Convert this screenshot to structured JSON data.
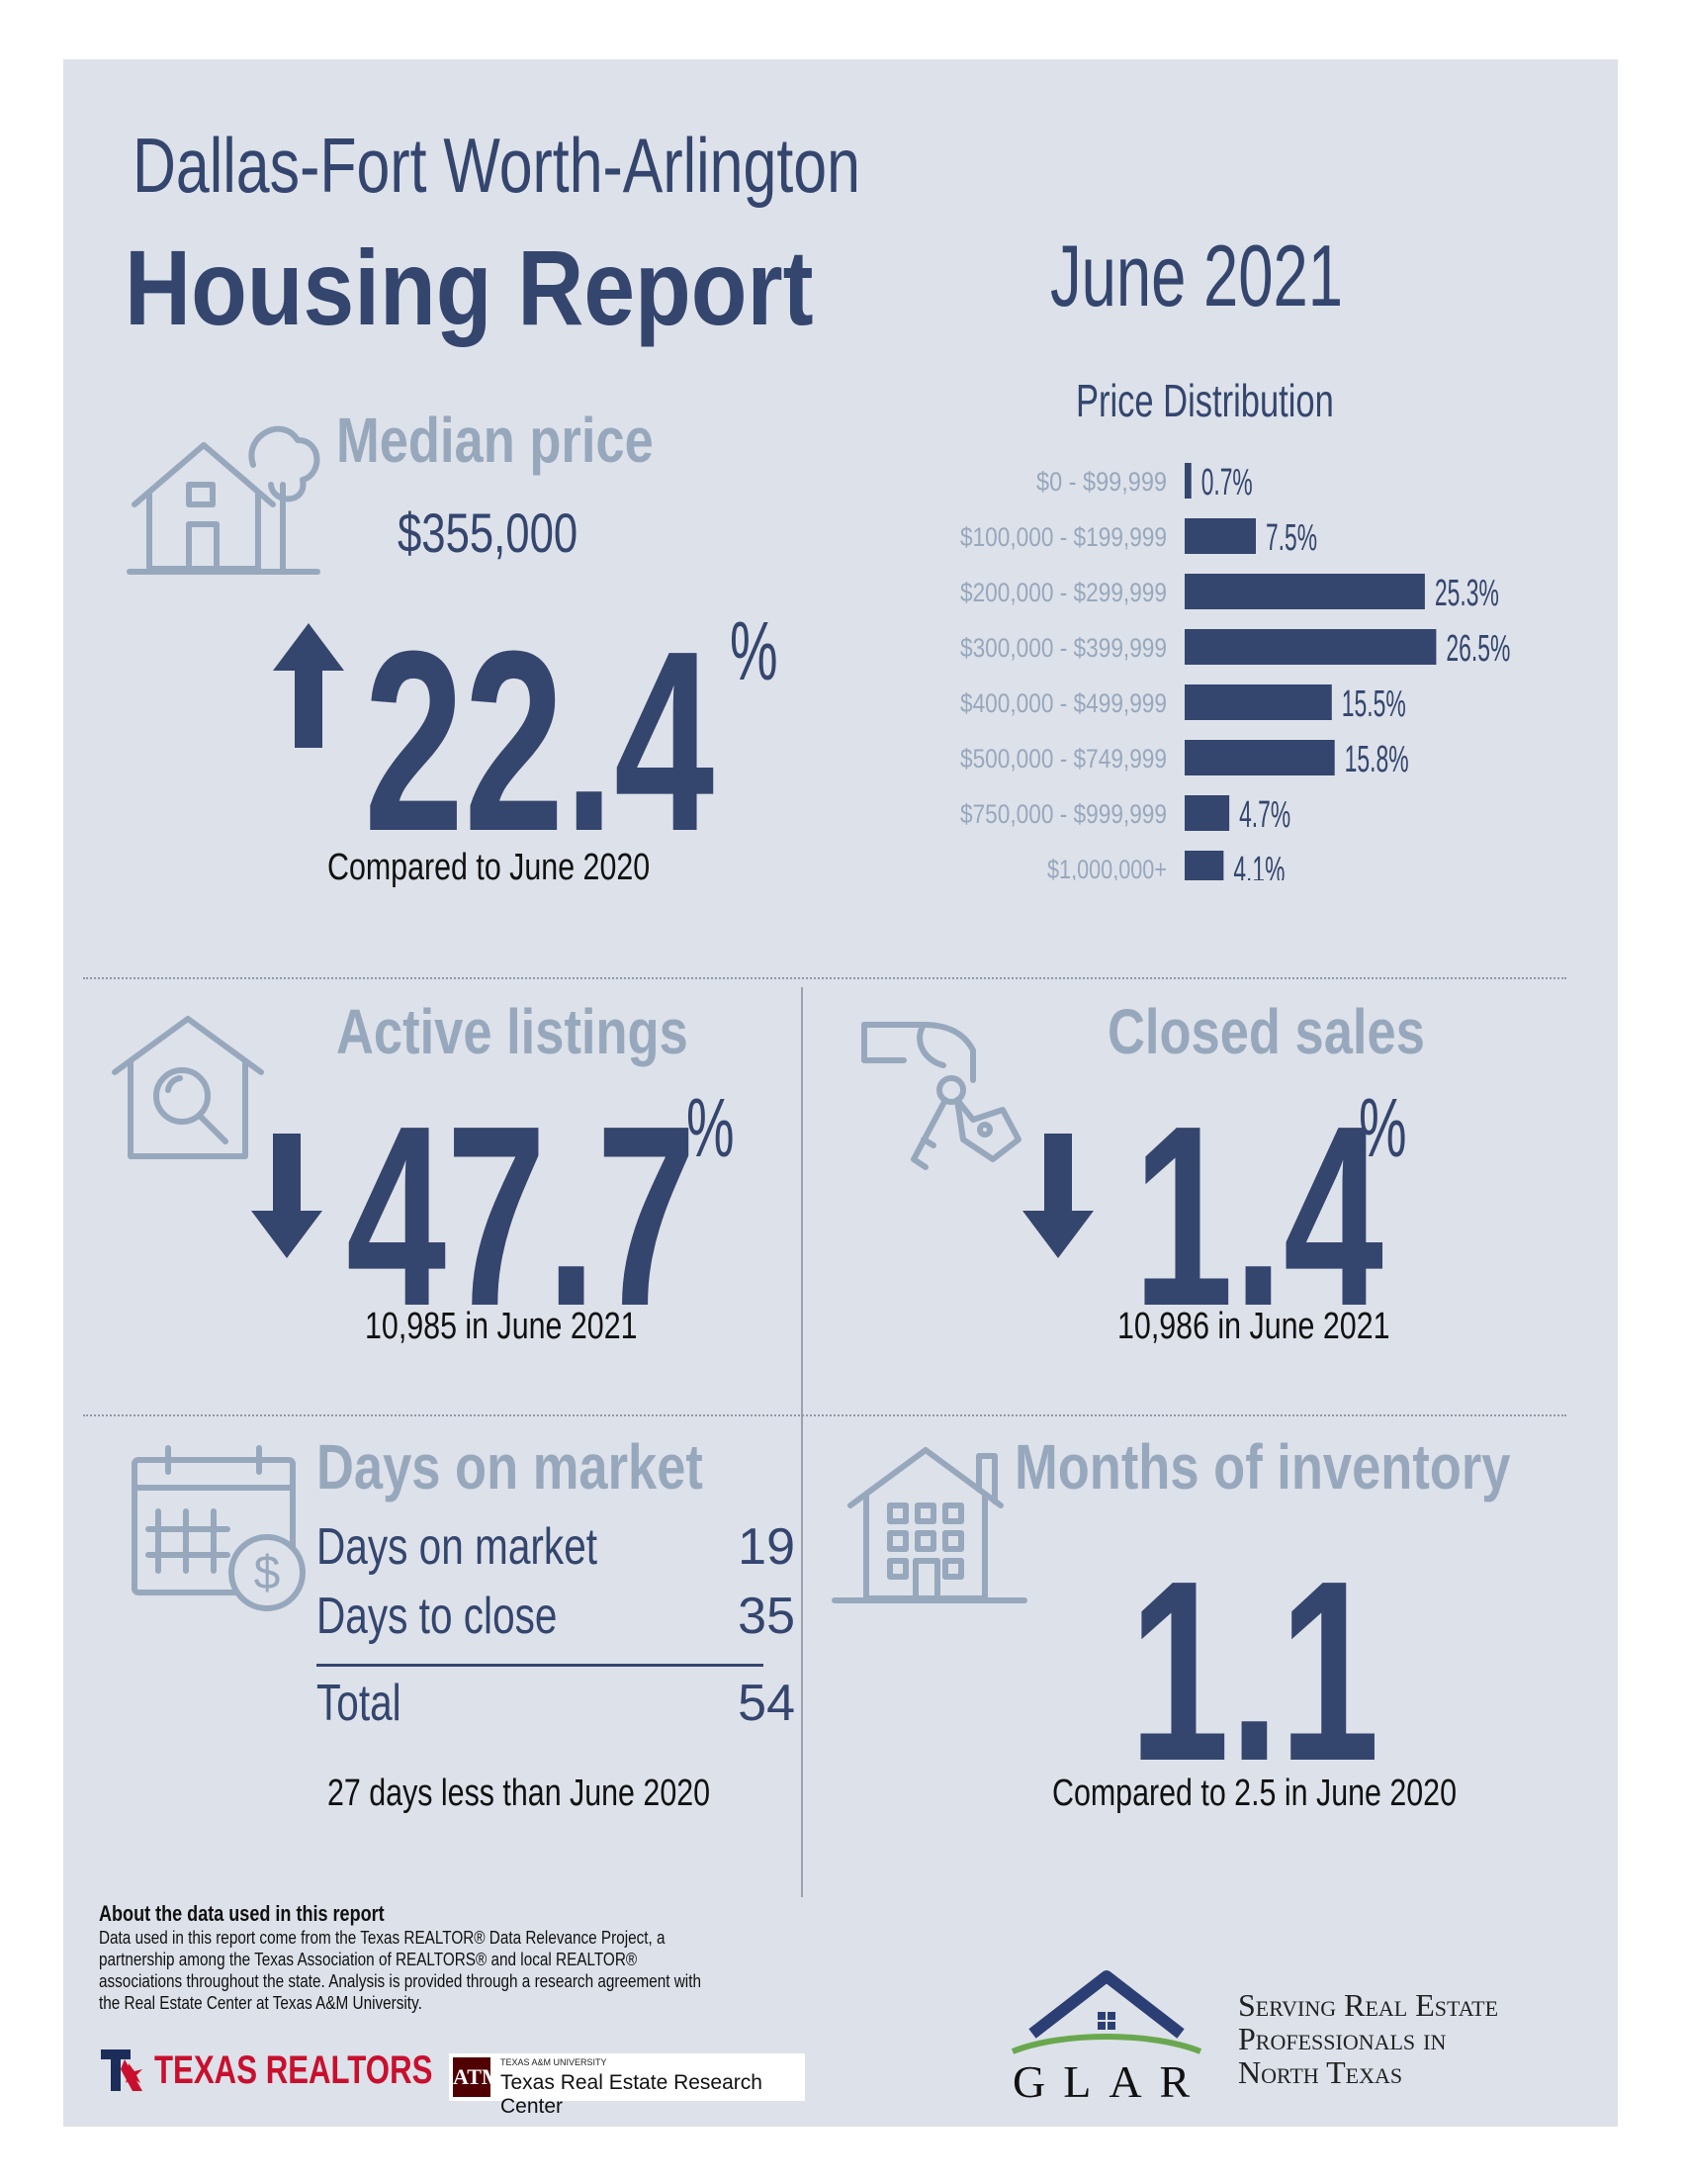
{
  "header": {
    "title_line1": "Dallas-Fort Worth-Arlington",
    "title_line2": "Housing Report",
    "date": "June 2021"
  },
  "median_price": {
    "title": "Median price",
    "value": "$355,000",
    "change": "22.4",
    "unit": "%",
    "direction": "up",
    "note": "Compared to June 2020"
  },
  "price_distribution": {
    "title": "Price Distribution",
    "bar_color": "#34466e"
  },
  "chart_data": {
    "type": "bar",
    "orientation": "horizontal",
    "title": "Price Distribution",
    "categories": [
      "$0 - $99,999",
      "$100,000 - $199,999",
      "$200,000 - $299,999",
      "$300,000 - $399,999",
      "$400,000 - $499,999",
      "$500,000 - $749,999",
      "$750,000 - $999,999",
      "$1,000,000+"
    ],
    "values": [
      0.7,
      7.5,
      25.3,
      26.5,
      15.5,
      15.8,
      4.7,
      4.1
    ],
    "labels": [
      "0.7%",
      "7.5%",
      "25.3%",
      "26.5%",
      "15.5%",
      "15.8%",
      "4.7%",
      "4.1%"
    ]
  },
  "active_listings": {
    "title": "Active listings",
    "change": "47.7",
    "unit": "%",
    "direction": "down",
    "note": "10,985 in June 2021"
  },
  "closed_sales": {
    "title": "Closed sales",
    "change": "1.4",
    "unit": "%",
    "direction": "down",
    "note": "10,986 in June 2021"
  },
  "days_on_market": {
    "title": "Days on market",
    "rows": [
      {
        "label": "Days on market",
        "value": "19"
      },
      {
        "label": "Days to close",
        "value": "35"
      }
    ],
    "total_label": "Total",
    "total_value": "54",
    "note": "27 days less than June 2020"
  },
  "months_inventory": {
    "title": "Months of inventory",
    "value": "1.1",
    "note": "Compared to 2.5 in June 2020"
  },
  "footer": {
    "about_title": "About the data used in this report",
    "about_text": "Data used in this report come from the Texas REALTOR® Data Relevance Project, a partnership among the Texas Association of REALTORS® and local REALTOR® associations throughout the state. Analysis is provided through a research agreement with the Real Estate Center at Texas A&M University.",
    "texas_realtors_logo": "TEXAS REALTORS",
    "tamu_small": "TEXAS A&M UNIVERSITY",
    "tamu_name": "Texas Real Estate Research Center",
    "glar_logo": "GLAR",
    "tagline_1": "Serving Real Estate",
    "tagline_2": "Professionals in",
    "tagline_3": "North Texas"
  },
  "colors": {
    "navy": "#34466e",
    "pale_blue": "#97a8bd",
    "panel_bg": "#dde1e9",
    "tx_red": "#c8102e",
    "tamu_maroon": "#500000",
    "glar_green": "#6aa84f"
  }
}
